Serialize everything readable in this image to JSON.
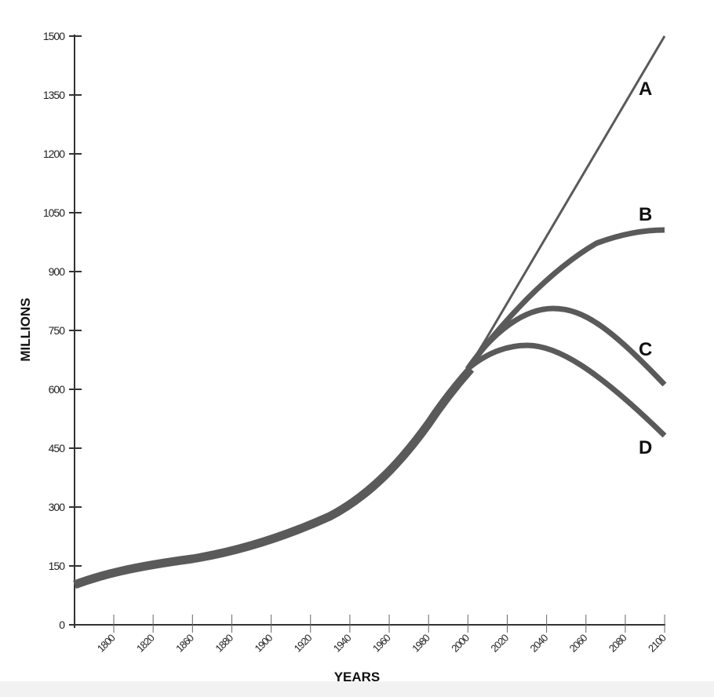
{
  "chart_data": {
    "type": "line",
    "title": "",
    "xlabel": "YEARS",
    "ylabel": "MILLIONS",
    "ylim": [
      0,
      1500
    ],
    "xlim": [
      1780,
      2100
    ],
    "grid": false,
    "y_ticks": [
      0,
      150,
      300,
      450,
      600,
      750,
      900,
      1050,
      1200,
      1350,
      1500
    ],
    "x_tick_labels": [
      "1800",
      "1820",
      "1860",
      "1880",
      "1900",
      "1920",
      "1940",
      "1960",
      "1980",
      "2000",
      "2020",
      "2040",
      "2060",
      "2080",
      "2100"
    ],
    "x": [
      "1780",
      "1800",
      "1820",
      "1860",
      "1880",
      "1900",
      "1920",
      "1940",
      "1960",
      "1980",
      "2000",
      "2020",
      "2040",
      "2060",
      "2080",
      "2100"
    ],
    "historical": {
      "name": "Historical",
      "values": [
        102,
        132,
        152,
        168,
        188,
        216,
        256,
        312,
        412,
        532,
        652
      ]
    },
    "series": [
      {
        "name": "A",
        "values": [
          102,
          132,
          152,
          168,
          188,
          216,
          256,
          312,
          412,
          532,
          652,
          822,
          992,
          1162,
          1332,
          1500
        ]
      },
      {
        "name": "B",
        "values": [
          102,
          132,
          152,
          168,
          188,
          216,
          256,
          312,
          412,
          532,
          652,
          790,
          900,
          960,
          995,
          1006
        ]
      },
      {
        "name": "C",
        "values": [
          102,
          132,
          152,
          168,
          188,
          216,
          256,
          312,
          412,
          532,
          652,
          760,
          806,
          790,
          720,
          612
        ]
      },
      {
        "name": "D",
        "values": [
          102,
          132,
          152,
          168,
          188,
          216,
          256,
          312,
          412,
          532,
          652,
          700,
          710,
          670,
          585,
          482
        ]
      }
    ],
    "annotations": [
      "A",
      "B",
      "C",
      "D"
    ]
  },
  "labels": {
    "y_axis_title": "MILLIONS",
    "x_axis_title": "YEARS",
    "series_A": "A",
    "series_B": "B",
    "series_C": "C",
    "series_D": "D"
  },
  "colors": {
    "line": "#5a5a5a",
    "axis": "#333333",
    "text": "#111111"
  }
}
